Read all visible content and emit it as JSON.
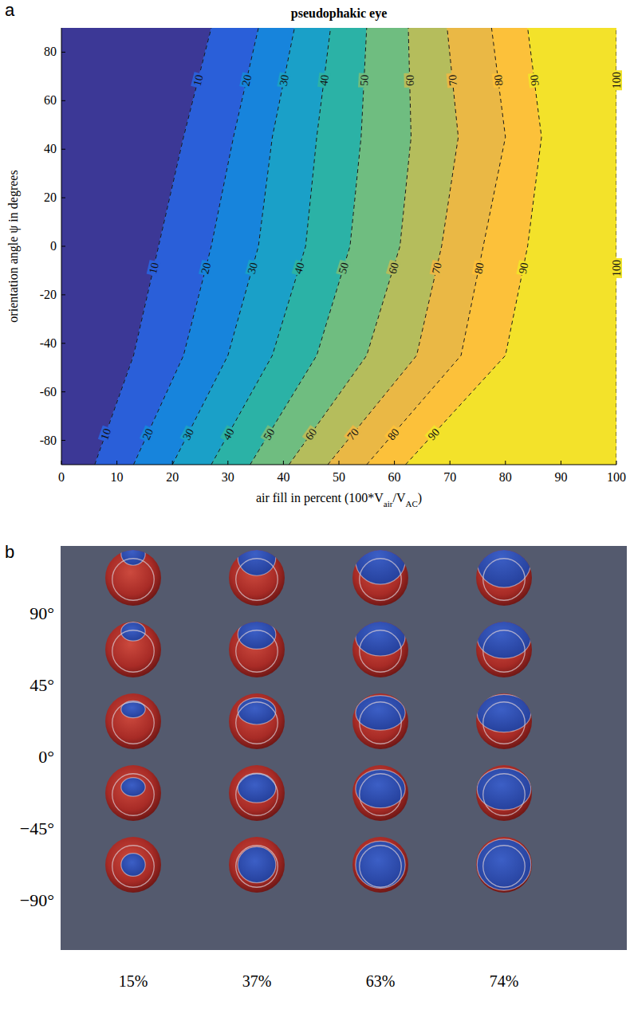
{
  "chart_data": {
    "type": "contour",
    "panel_label": "a",
    "title": "pseudophakic eye",
    "xlabel": [
      {
        "text": "air fill in percent (100*V"
      },
      {
        "text": "air",
        "sub": true
      },
      {
        "text": "/V"
      },
      {
        "text": "AC",
        "sub": true
      },
      {
        "text": ")"
      }
    ],
    "ylabel": "orientation angle ψ in degrees",
    "xlim": [
      0,
      100
    ],
    "ylim": [
      -90,
      90
    ],
    "xticks": [
      0,
      10,
      20,
      30,
      40,
      50,
      60,
      70,
      80,
      90,
      100
    ],
    "yticks": [
      -80,
      -60,
      -40,
      -20,
      0,
      20,
      40,
      60,
      80
    ],
    "grid": false,
    "line_style": "dashed",
    "series": [
      {
        "level": 10,
        "color": "#3c3896",
        "x": [
          6,
          13,
          17.5,
          22,
          27
        ],
        "y": [
          -90,
          -45,
          0,
          45,
          90
        ]
      },
      {
        "level": 20,
        "color": "#2a5fd9",
        "x": [
          13,
          22,
          27,
          31,
          35.5
        ],
        "y": [
          -90,
          -45,
          0,
          45,
          90
        ]
      },
      {
        "level": 30,
        "color": "#1784dc",
        "x": [
          20,
          30,
          35.5,
          38,
          42
        ],
        "y": [
          -90,
          -45,
          0,
          45,
          90
        ]
      },
      {
        "level": 40,
        "color": "#1aa0c8",
        "x": [
          27,
          38,
          44,
          46,
          48.5
        ],
        "y": [
          -90,
          -45,
          0,
          45,
          90
        ]
      },
      {
        "level": 50,
        "color": "#2bb2a6",
        "x": [
          34,
          46,
          52,
          54,
          55
        ],
        "y": [
          -90,
          -45,
          0,
          45,
          90
        ]
      },
      {
        "level": 60,
        "color": "#6fbd80",
        "x": [
          41,
          55,
          61,
          63,
          62.5
        ],
        "y": [
          -90,
          -45,
          0,
          45,
          90
        ]
      },
      {
        "level": 70,
        "color": "#b5bd5c",
        "x": [
          48,
          64,
          68.5,
          71.5,
          69.5
        ],
        "y": [
          -90,
          -45,
          0,
          45,
          90
        ]
      },
      {
        "level": 80,
        "color": "#eab845",
        "x": [
          55,
          72,
          76,
          80,
          77.5
        ],
        "y": [
          -90,
          -45,
          0,
          45,
          90
        ]
      },
      {
        "level": 90,
        "color": "#fcc13a",
        "x": [
          62,
          80,
          84,
          86.5,
          84
        ],
        "y": [
          -90,
          -45,
          0,
          45,
          90
        ]
      },
      {
        "level": 100,
        "color": "#f3e22a",
        "x": [
          100,
          100,
          100,
          100,
          100
        ],
        "y": [
          -90,
          -45,
          0,
          45,
          90
        ]
      }
    ]
  },
  "panel_b": {
    "panel_label": "b",
    "rows": [
      {
        "value": 90,
        "label": "90°"
      },
      {
        "value": 45,
        "label": "45°"
      },
      {
        "value": 0,
        "label": "0°"
      },
      {
        "value": -45,
        "label": "−45°"
      },
      {
        "value": -90,
        "label": "−90°"
      }
    ],
    "columns": [
      {
        "value": 15,
        "label": "15%"
      },
      {
        "value": 37,
        "label": "37%"
      },
      {
        "value": 63,
        "label": "63%"
      },
      {
        "value": 74,
        "label": "74%"
      }
    ]
  }
}
